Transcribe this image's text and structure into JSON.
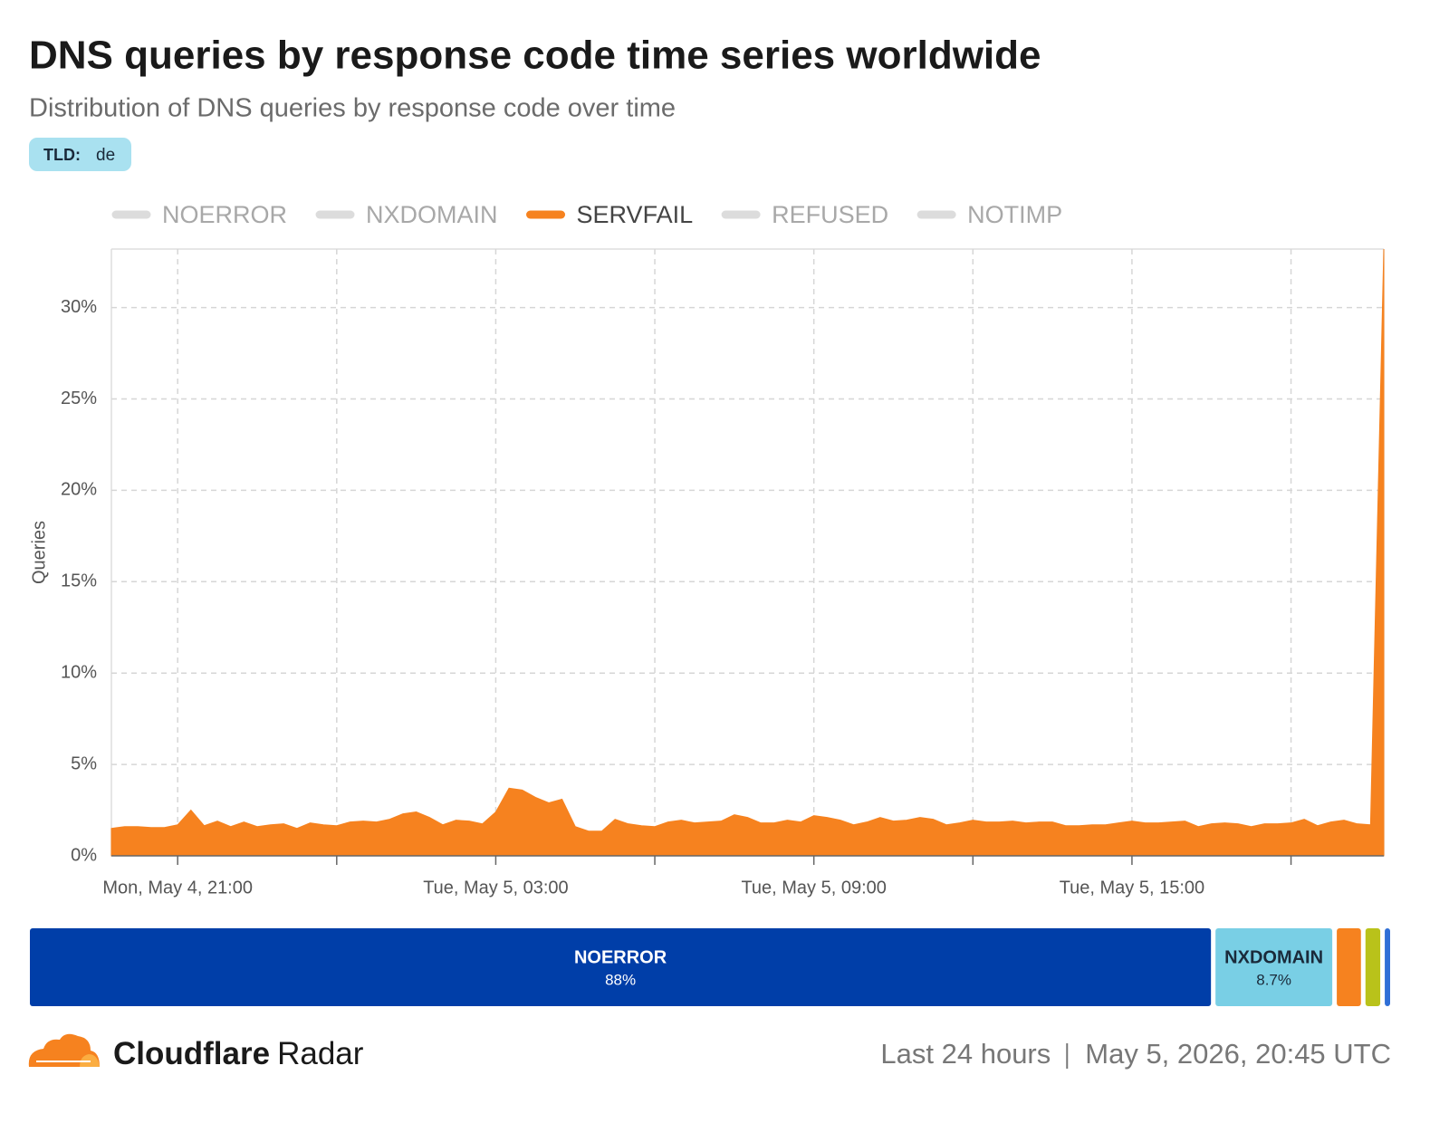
{
  "chart_data": [
    {
      "type": "area",
      "title": "DNS queries by response code time series worldwide",
      "subtitle": "Distribution of DNS queries by response code over time",
      "filter_label": "TLD:",
      "filter_value": "de",
      "ylabel": "Queries",
      "x": [
        "Mon, May 4, 19:45",
        "Mon, May 4, 20:00",
        "Mon, May 4, 20:15",
        "Mon, May 4, 20:30",
        "Mon, May 4, 20:45",
        "Mon, May 4, 21:00",
        "Mon, May 4, 21:15",
        "Mon, May 4, 21:30",
        "Mon, May 4, 21:45",
        "Mon, May 4, 22:00",
        "Mon, May 4, 22:15",
        "Mon, May 4, 22:30",
        "Mon, May 4, 22:45",
        "Mon, May 4, 23:00",
        "Mon, May 4, 23:15",
        "Mon, May 4, 23:30",
        "Mon, May 4, 23:45",
        "Tue, May 5, 00:00",
        "Tue, May 5, 00:15",
        "Tue, May 5, 00:30",
        "Tue, May 5, 00:45",
        "Tue, May 5, 01:00",
        "Tue, May 5, 01:15",
        "Tue, May 5, 01:30",
        "Tue, May 5, 01:45",
        "Tue, May 5, 02:00",
        "Tue, May 5, 02:15",
        "Tue, May 5, 02:30",
        "Tue, May 5, 02:45",
        "Tue, May 5, 03:00",
        "Tue, May 5, 03:15",
        "Tue, May 5, 03:30",
        "Tue, May 5, 03:45",
        "Tue, May 5, 04:00",
        "Tue, May 5, 04:15",
        "Tue, May 5, 04:30",
        "Tue, May 5, 04:45",
        "Tue, May 5, 05:00",
        "Tue, May 5, 05:15",
        "Tue, May 5, 05:30",
        "Tue, May 5, 05:45",
        "Tue, May 5, 06:00",
        "Tue, May 5, 06:15",
        "Tue, May 5, 06:30",
        "Tue, May 5, 06:45",
        "Tue, May 5, 07:00",
        "Tue, May 5, 07:15",
        "Tue, May 5, 07:30",
        "Tue, May 5, 07:45",
        "Tue, May 5, 08:00",
        "Tue, May 5, 08:15",
        "Tue, May 5, 08:30",
        "Tue, May 5, 08:45",
        "Tue, May 5, 09:00",
        "Tue, May 5, 09:15",
        "Tue, May 5, 09:30",
        "Tue, May 5, 09:45",
        "Tue, May 5, 10:00",
        "Tue, May 5, 10:15",
        "Tue, May 5, 10:30",
        "Tue, May 5, 10:45",
        "Tue, May 5, 11:00",
        "Tue, May 5, 11:15",
        "Tue, May 5, 11:30",
        "Tue, May 5, 11:45",
        "Tue, May 5, 12:00",
        "Tue, May 5, 12:15",
        "Tue, May 5, 12:30",
        "Tue, May 5, 12:45",
        "Tue, May 5, 13:00",
        "Tue, May 5, 13:15",
        "Tue, May 5, 13:30",
        "Tue, May 5, 13:45",
        "Tue, May 5, 14:00",
        "Tue, May 5, 14:15",
        "Tue, May 5, 14:30",
        "Tue, May 5, 14:45",
        "Tue, May 5, 15:00",
        "Tue, May 5, 15:15",
        "Tue, May 5, 15:30",
        "Tue, May 5, 15:45",
        "Tue, May 5, 16:00",
        "Tue, May 5, 16:15",
        "Tue, May 5, 16:30",
        "Tue, May 5, 16:45",
        "Tue, May 5, 17:00",
        "Tue, May 5, 17:15",
        "Tue, May 5, 17:30",
        "Tue, May 5, 17:45",
        "Tue, May 5, 18:00",
        "Tue, May 5, 18:15",
        "Tue, May 5, 18:30",
        "Tue, May 5, 18:45",
        "Tue, May 5, 19:00",
        "Tue, May 5, 19:15",
        "Tue, May 5, 19:30",
        "Tue, May 5, 19:45"
      ],
      "xticks": [
        "Mon, May 4, 21:00",
        {
          "value": "Tue, May 5, 00:00",
          "label": null
        },
        "Tue, May 5, 03:00",
        {
          "value": "Tue, May 5, 06:00",
          "label": null
        },
        "Tue, May 5, 09:00",
        {
          "value": "Tue, May 5, 12:00",
          "label": null
        },
        "Tue, May 5, 15:00",
        {
          "value": "Tue, May 5, 18:00",
          "label": null
        }
      ],
      "ylim": [
        0,
        33.2
      ],
      "yticks": [
        {
          "value": 0,
          "label": "0%"
        },
        {
          "value": 5,
          "label": "5%"
        },
        {
          "value": 10,
          "label": "10%"
        },
        {
          "value": 15,
          "label": "15%"
        },
        {
          "value": 20,
          "label": "20%"
        },
        {
          "value": 25,
          "label": "25%"
        },
        {
          "value": 30,
          "label": "30%"
        }
      ],
      "grid": true,
      "series": [
        {
          "name": "NOERROR",
          "color": "#003ea8",
          "hidden": true
        },
        {
          "name": "NXDOMAIN",
          "color": "#79cfe5",
          "hidden": true
        },
        {
          "name": "SERVFAIL",
          "color": "#f6821f",
          "hidden": false,
          "values": [
            1.5,
            1.6,
            1.6,
            1.55,
            1.55,
            1.7,
            2.5,
            1.65,
            1.9,
            1.6,
            1.85,
            1.6,
            1.7,
            1.75,
            1.5,
            1.8,
            1.7,
            1.65,
            1.85,
            1.9,
            1.85,
            2.0,
            2.3,
            2.4,
            2.1,
            1.7,
            1.95,
            1.9,
            1.75,
            2.4,
            3.7,
            3.6,
            3.2,
            2.9,
            3.1,
            1.6,
            1.35,
            1.35,
            2.0,
            1.75,
            1.65,
            1.6,
            1.85,
            1.95,
            1.8,
            1.85,
            1.9,
            2.25,
            2.1,
            1.8,
            1.8,
            1.95,
            1.85,
            2.2,
            2.1,
            1.95,
            1.7,
            1.85,
            2.1,
            1.9,
            1.95,
            2.1,
            2.0,
            1.7,
            1.8,
            1.95,
            1.85,
            1.85,
            1.9,
            1.8,
            1.85,
            1.85,
            1.65,
            1.65,
            1.7,
            1.7,
            1.8,
            1.9,
            1.8,
            1.8,
            1.85,
            1.9,
            1.6,
            1.75,
            1.8,
            1.75,
            1.6,
            1.75,
            1.75,
            1.8,
            2.0,
            1.65,
            1.85,
            1.95,
            1.75,
            1.7,
            33.2
          ]
        },
        {
          "name": "REFUSED",
          "color": "#b9c21a",
          "hidden": true
        },
        {
          "name": "NOTIMP",
          "color": "#2f6fd6",
          "hidden": true
        }
      ]
    },
    {
      "type": "share-bar",
      "categories": [
        "NOERROR",
        "NXDOMAIN",
        null,
        null,
        null
      ],
      "values": [
        88,
        8.7,
        1.8,
        1.1,
        0.4
      ],
      "value_labels": [
        "88%",
        "8.7%",
        null,
        null,
        null
      ],
      "colors": [
        "#003ea8",
        "#79cfe5",
        "#f6821f",
        "#b9c21a",
        "#2f6fd6"
      ],
      "xlim": [
        0,
        100
      ]
    }
  ],
  "footer": {
    "brand_bold": "Cloudflare",
    "brand_light": "Radar",
    "period": "Last 24 hours",
    "timestamp": "May 5, 2026, 20:45 UTC"
  }
}
